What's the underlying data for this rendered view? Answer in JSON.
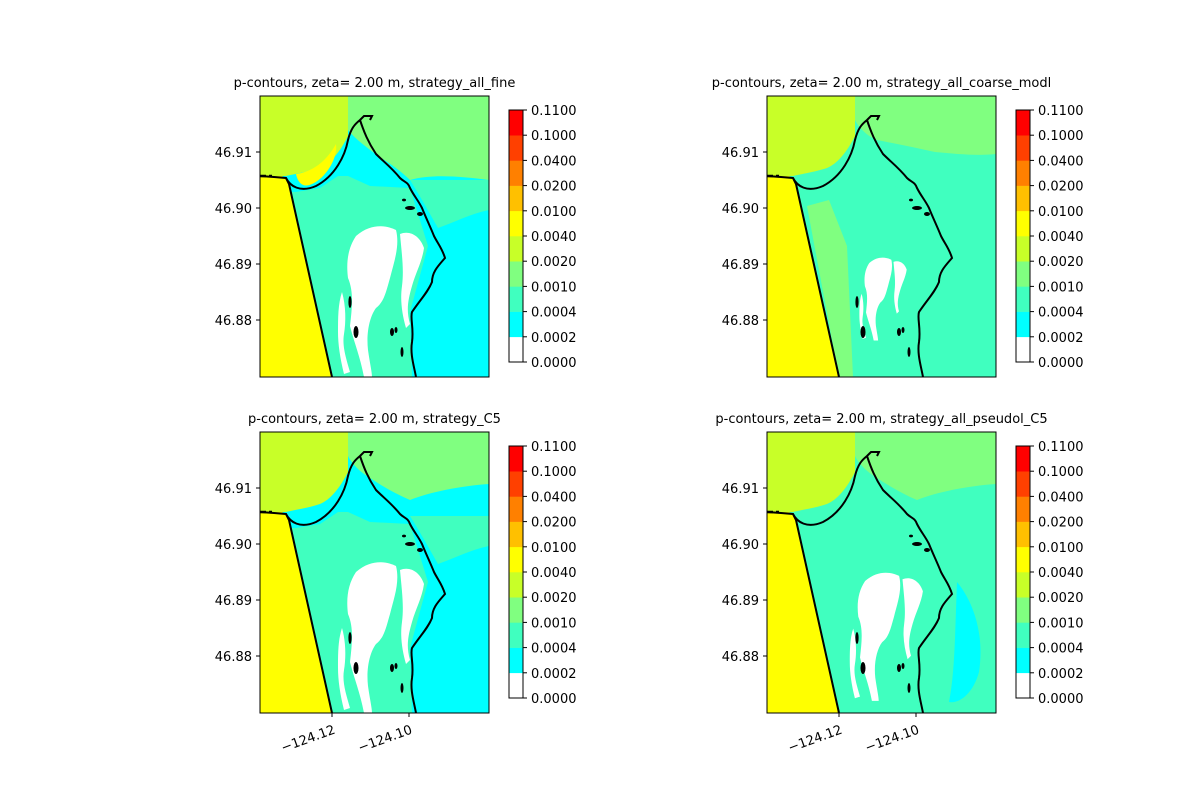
{
  "figure": {
    "panels": [
      {
        "title": "p-contours, zeta= 2.00 m, strategy_all_fine",
        "variant": "fine"
      },
      {
        "title": "p-contours, zeta= 2.00 m, strategy_all_coarse_modl",
        "variant": "coarse"
      },
      {
        "title": "p-contours, zeta= 2.00 m, strategy_C5",
        "variant": "c5"
      },
      {
        "title": "p-contours, zeta= 2.00 m, strategy_all_pseudol_C5",
        "variant": "pseudo"
      }
    ],
    "y_ticks": [
      "46.91",
      "46.90",
      "46.89",
      "46.88"
    ],
    "x_ticks": [
      "−124.12",
      "−124.10"
    ],
    "colorbar": {
      "levels": [
        "0.0000",
        "0.0002",
        "0.0004",
        "0.0010",
        "0.0020",
        "0.0040",
        "0.0100",
        "0.0200",
        "0.0400",
        "0.1000",
        "0.1100"
      ],
      "colors": [
        "#ffffff",
        "#00ffff",
        "#40ffbf",
        "#80ff80",
        "#c8ff28",
        "#ffff00",
        "#ffc000",
        "#ff8000",
        "#ff4000",
        "#ff0000"
      ]
    }
  }
}
